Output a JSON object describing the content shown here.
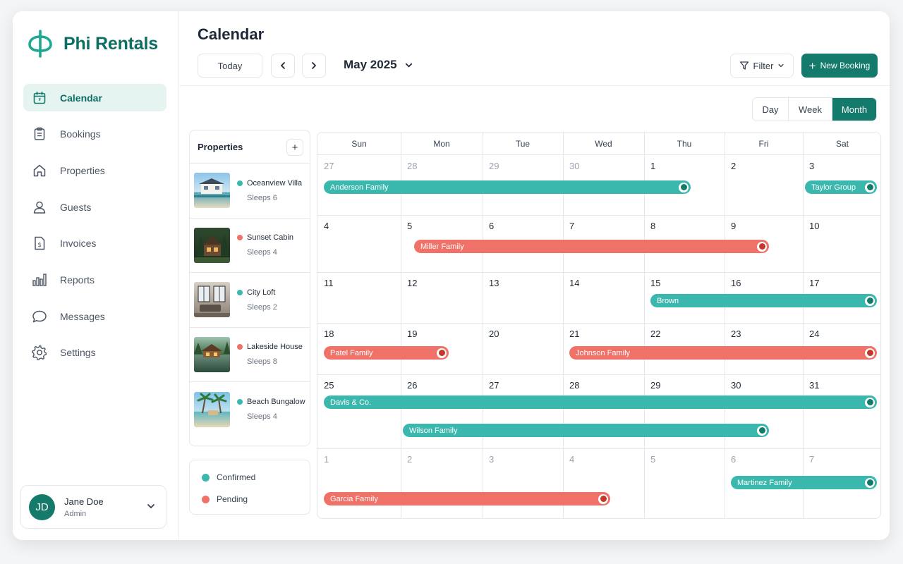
{
  "app": {
    "name": "Phi Rentals"
  },
  "colors": {
    "brand": "#137a6c",
    "confirmed": "#3bb8ad",
    "pending": "#f07167"
  },
  "nav": [
    {
      "label": "Calendar",
      "icon": "calendar-icon",
      "active": true
    },
    {
      "label": "Bookings",
      "icon": "clipboard-icon",
      "active": false
    },
    {
      "label": "Properties",
      "icon": "home-icon",
      "active": false
    },
    {
      "label": "Guests",
      "icon": "user-icon",
      "active": false
    },
    {
      "label": "Invoices",
      "icon": "invoice-icon",
      "active": false
    },
    {
      "label": "Reports",
      "icon": "bar-chart-icon",
      "active": false
    },
    {
      "label": "Messages",
      "icon": "chat-icon",
      "active": false
    },
    {
      "label": "Settings",
      "icon": "gear-icon",
      "active": false
    }
  ],
  "user": {
    "initials": "JD",
    "name": "Jane Doe",
    "role": "Admin"
  },
  "header": {
    "title": "Calendar",
    "today_label": "Today",
    "month": "May 2025",
    "filter_label": "Filter",
    "new_booking_label": "New Booking"
  },
  "views": [
    {
      "label": "Day",
      "active": false
    },
    {
      "label": "Week",
      "active": false
    },
    {
      "label": "Month",
      "active": true
    }
  ],
  "properties": {
    "title": "Properties",
    "add_label": "+",
    "items": [
      {
        "name": "Oceanview Villa",
        "sleeps": "Sleeps 6",
        "status": "confirmed",
        "thumb": "villa-photo"
      },
      {
        "name": "Sunset Cabin",
        "sleeps": "Sleeps 4",
        "status": "pending",
        "thumb": "cabin-photo"
      },
      {
        "name": "City Loft",
        "sleeps": "Sleeps 2",
        "status": "confirmed",
        "thumb": "loft-photo"
      },
      {
        "name": "Lakeside House",
        "sleeps": "Sleeps 8",
        "status": "pending",
        "thumb": "lakeside-photo"
      },
      {
        "name": "Beach Bungalow",
        "sleeps": "Sleeps 4",
        "status": "confirmed",
        "thumb": "bungalow-photo"
      }
    ]
  },
  "legend": [
    {
      "label": "Confirmed",
      "status": "confirmed"
    },
    {
      "label": "Pending",
      "status": "pending"
    }
  ],
  "calendar": {
    "weekdays": [
      "Sun",
      "Mon",
      "Tue",
      "Wed",
      "Thu",
      "Fri",
      "Sat"
    ],
    "weeks": [
      {
        "days": [
          "27",
          "28",
          "29",
          "30",
          "1",
          "2",
          "3"
        ],
        "muted": [
          true,
          true,
          true,
          true,
          false,
          false,
          false
        ]
      },
      {
        "days": [
          "4",
          "5",
          "6",
          "7",
          "8",
          "9",
          "10"
        ],
        "muted": [
          false,
          false,
          false,
          false,
          false,
          false,
          false
        ]
      },
      {
        "days": [
          "11",
          "12",
          "13",
          "14",
          "15",
          "16",
          "17"
        ],
        "muted": [
          false,
          false,
          false,
          false,
          false,
          false,
          false
        ]
      },
      {
        "days": [
          "18",
          "19",
          "20",
          "21",
          "22",
          "23",
          "24"
        ],
        "muted": [
          false,
          false,
          false,
          false,
          false,
          false,
          false
        ]
      },
      {
        "days": [
          "25",
          "26",
          "27",
          "28",
          "29",
          "30",
          "31"
        ],
        "muted": [
          false,
          false,
          false,
          false,
          false,
          false,
          false
        ]
      },
      {
        "days": [
          "1",
          "2",
          "3",
          "4",
          "5",
          "6",
          "7"
        ],
        "muted": [
          true,
          true,
          true,
          true,
          true,
          true,
          true
        ]
      }
    ],
    "bookings": [
      {
        "name": "Anderson Family",
        "status": "confirmed",
        "week": 0,
        "start_day": 0,
        "end_day": 4,
        "lane": 0
      },
      {
        "name": "Taylor Group",
        "status": "confirmed",
        "week": 0,
        "start_day": 6,
        "end_day": 6,
        "lane": 0
      },
      {
        "name": "Miller Family",
        "status": "pending",
        "week": 1,
        "start_day": 1,
        "end_day": 5,
        "lane": 0
      },
      {
        "name": "Brown",
        "status": "confirmed",
        "week": 2,
        "start_day": 4,
        "end_day": 6,
        "lane": 0
      },
      {
        "name": "Patel Family",
        "status": "pending",
        "week": 3,
        "start_day": 0,
        "end_day": 1,
        "lane": 0
      },
      {
        "name": "Johnson Family",
        "status": "pending",
        "week": 3,
        "start_day": 3,
        "end_day": 6,
        "lane": 0
      },
      {
        "name": "Davis & Co.",
        "status": "confirmed",
        "week": 4,
        "start_day": 0,
        "end_day": 6,
        "lane": 0
      },
      {
        "name": "Wilson Family",
        "status": "confirmed",
        "week": 4,
        "start_day": 1,
        "end_day": 5,
        "lane": 1
      },
      {
        "name": "Garcia Family",
        "status": "pending",
        "week": 5,
        "start_day": 0,
        "end_day": 3,
        "lane": 1
      },
      {
        "name": "Martinez Family",
        "status": "confirmed",
        "week": 5,
        "start_day": 5,
        "end_day": 6,
        "lane": 0
      }
    ]
  }
}
